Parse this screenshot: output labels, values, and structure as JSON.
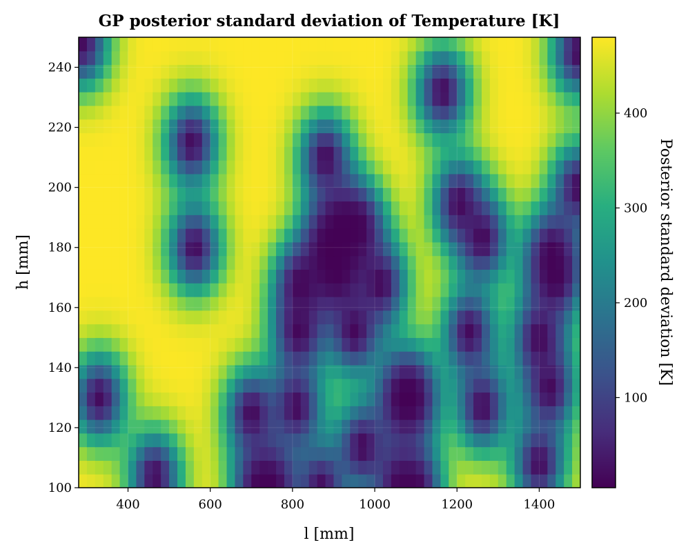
{
  "chart_data": {
    "type": "heatmap",
    "title": "GP posterior standard deviation of Temperature [K]",
    "xlabel": "l [mm]",
    "ylabel": "h [mm]",
    "colorbar_label": "Posterior standard deviation [K]",
    "colormap": "viridis",
    "xlim": [
      280,
      1500
    ],
    "ylim": [
      100,
      250
    ],
    "clim": [
      5,
      480
    ],
    "x_ticks": [
      400,
      600,
      800,
      1000,
      1200,
      1400
    ],
    "y_ticks": [
      100,
      120,
      140,
      160,
      180,
      200,
      220,
      240
    ],
    "colorbar_ticks": [
      100,
      200,
      300,
      400
    ],
    "grid": true,
    "observation_points": [
      [
        288,
        248
      ],
      [
        330,
        130
      ],
      [
        465,
        104
      ],
      [
        555,
        215
      ],
      [
        562,
        180
      ],
      [
        700,
        125
      ],
      [
        720,
        100
      ],
      [
        750,
        100
      ],
      [
        810,
        127
      ],
      [
        815,
        152
      ],
      [
        818,
        168
      ],
      [
        870,
        100
      ],
      [
        880,
        210
      ],
      [
        890,
        180
      ],
      [
        905,
        172
      ],
      [
        920,
        186
      ],
      [
        960,
        187
      ],
      [
        950,
        152
      ],
      [
        970,
        114
      ],
      [
        1015,
        168
      ],
      [
        1060,
        100
      ],
      [
        1070,
        130
      ],
      [
        1090,
        130
      ],
      [
        1100,
        100
      ],
      [
        1165,
        232
      ],
      [
        1205,
        195
      ],
      [
        1230,
        152
      ],
      [
        1262,
        183
      ],
      [
        1262,
        127
      ],
      [
        1400,
        150
      ],
      [
        1400,
        108
      ],
      [
        1425,
        133
      ],
      [
        1430,
        178
      ],
      [
        1440,
        170
      ],
      [
        1495,
        245
      ],
      [
        1495,
        200
      ]
    ]
  }
}
